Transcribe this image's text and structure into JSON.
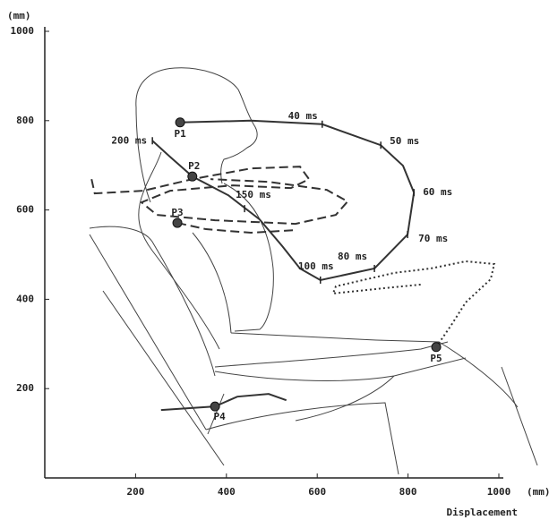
{
  "chart_data": {
    "type": "trajectory",
    "y_unit": "(mm)",
    "x_unit": "(mm)",
    "x_label": "Displacement",
    "xlim": [
      0,
      1000
    ],
    "ylim": [
      0,
      1000
    ],
    "xticks": [
      200,
      400,
      600,
      800,
      1000
    ],
    "yticks": [
      200,
      400,
      600,
      800,
      1000
    ],
    "series": [
      {
        "style": "solid",
        "color": "#333333",
        "x": [
          298,
          454,
          611,
          740,
          789,
          813,
          799,
          726,
          607,
          562,
          523,
          473,
          404,
          325,
          276,
          237
        ],
        "y": [
          796,
          800,
          792,
          745,
          699,
          639,
          545,
          469,
          443,
          469,
          519,
          579,
          633,
          675,
          719,
          755
        ]
      },
      {
        "style": "dashed",
        "color": "#333333",
        "x": [
          103,
          110,
          217,
          325,
          454,
          562,
          582,
          542,
          414,
          276,
          213,
          247,
          375,
          552,
          641,
          667,
          621,
          493,
          365
        ],
        "y": [
          669,
          637,
          643,
          669,
          693,
          697,
          669,
          649,
          655,
          643,
          617,
          589,
          577,
          569,
          589,
          619,
          645,
          663,
          669
        ]
      },
      {
        "style": "dashed",
        "color": "#333333",
        "x": [
          292,
          355,
          454,
          552
        ],
        "y": [
          571,
          557,
          549,
          555
        ]
      },
      {
        "style": "solid",
        "color": "#333333",
        "x": [
          256,
          375,
          424,
          493,
          532
        ],
        "y": [
          152,
          160,
          182,
          188,
          174
        ]
      },
      {
        "style": "dotted",
        "color": "#333333",
        "x": [
          862,
          897,
          927,
          982,
          990,
          927,
          850,
          769,
          641,
          635,
          749,
          828
        ],
        "y": [
          293,
          345,
          393,
          445,
          479,
          485,
          469,
          459,
          429,
          413,
          425,
          433
        ]
      }
    ],
    "points": {
      "color": "#444444",
      "labels": [
        "P1",
        "P2",
        "P3",
        "P4",
        "P5"
      ],
      "x": [
        298,
        325,
        292,
        375,
        862
      ],
      "y": [
        796,
        675,
        571,
        160,
        293
      ]
    },
    "annotations": [
      {
        "text": "40 ms",
        "x": 611,
        "y": 792
      },
      {
        "text": "50 ms",
        "x": 740,
        "y": 745
      },
      {
        "text": "60 ms",
        "x": 813,
        "y": 639
      },
      {
        "text": "70 ms",
        "x": 799,
        "y": 545
      },
      {
        "text": "80 ms",
        "x": 726,
        "y": 469
      },
      {
        "text": "100 ms",
        "x": 607,
        "y": 443
      },
      {
        "text": "150 ms",
        "x": 440,
        "y": 603
      },
      {
        "text": "200 ms",
        "x": 237,
        "y": 755
      }
    ]
  }
}
